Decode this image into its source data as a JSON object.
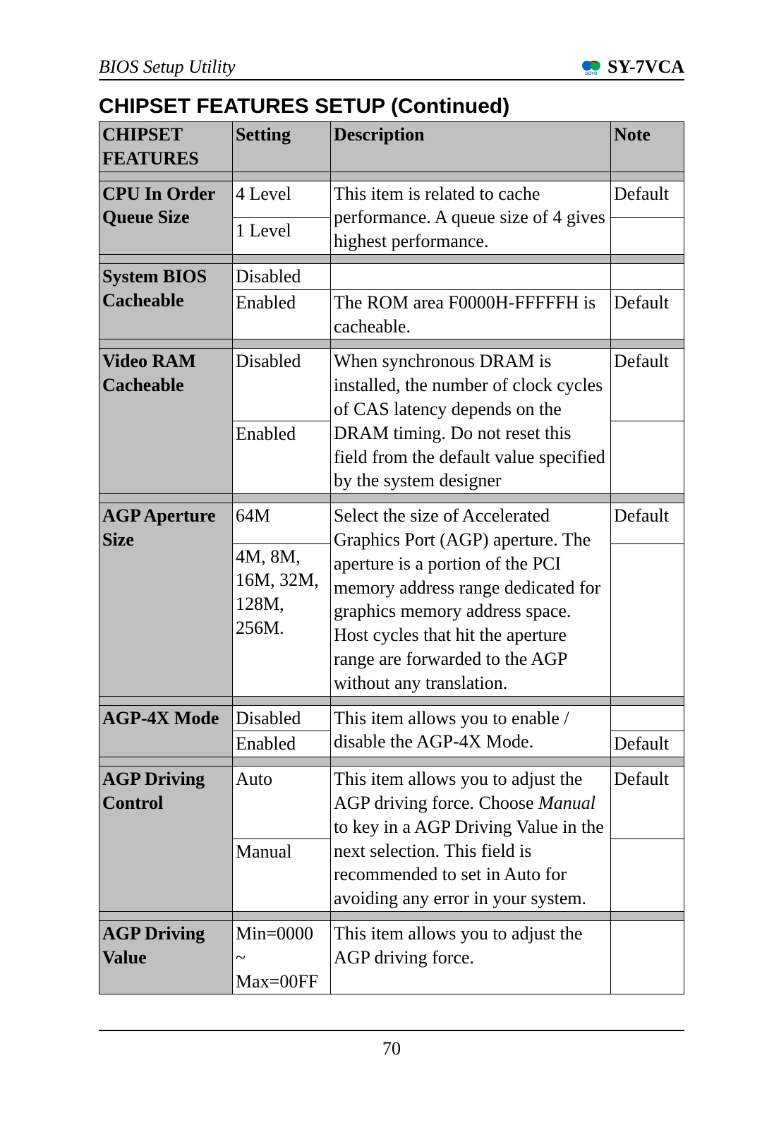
{
  "header": {
    "left": "BIOS Setup Utility",
    "right": "SY-7VCA",
    "logo_main_color": "#0066cc",
    "logo_text": "SOYO"
  },
  "section_title": "CHIPSET FEATURES SETUP (Continued)",
  "columns": {
    "feature": "CHIPSET FEATURES",
    "setting": "Setting",
    "description": "Description",
    "note": "Note"
  },
  "rows": [
    {
      "feature": "CPU In Order Queue Size",
      "settings": [
        "4 Level",
        "1 Level"
      ],
      "descriptions": [
        "This item is related to cache performance. A queue size of 4 gives highest performance."
      ],
      "desc_rowspan": 2,
      "notes": [
        "Default",
        ""
      ]
    },
    {
      "feature": "System BIOS Cacheable",
      "settings": [
        "Disabled",
        "Enabled"
      ],
      "descriptions": [
        "",
        "The ROM area F0000H-FFFFFH is cacheable."
      ],
      "notes": [
        "",
        "Default"
      ]
    },
    {
      "feature": "Video RAM Cacheable",
      "settings": [
        "Disabled",
        "Enabled"
      ],
      "descriptions": [
        "When synchronous DRAM is installed, the number of clock cycles of CAS latency depends on the DRAM timing. Do not reset this field from the default value specified by the system designer"
      ],
      "desc_rowspan": 2,
      "notes": [
        "Default",
        ""
      ]
    },
    {
      "feature": "AGP Aperture Size",
      "settings": [
        "64M",
        "4M, 8M, 16M, 32M, 128M, 256M."
      ],
      "descriptions": [
        "Select the size of Accelerated Graphics Port (AGP) aperture. The aperture is a portion of the PCI memory address range dedicated for graphics memory address space. Host cycles that hit the aperture range are forwarded to the AGP without any translation."
      ],
      "desc_rowspan": 2,
      "notes": [
        "Default",
        ""
      ]
    },
    {
      "feature": "AGP-4X Mode",
      "settings": [
        "Disabled",
        "Enabled"
      ],
      "descriptions": [
        "This item allows you to enable / disable the AGP-4X Mode."
      ],
      "desc_rowspan": 2,
      "notes": [
        "",
        "Default"
      ]
    },
    {
      "feature": "AGP Driving Control",
      "settings": [
        "Auto",
        "Manual"
      ],
      "descriptions_html": "This item allows you to adjust the AGP driving force. Choose <span class=\"italic\">Manual</span> to key in a AGP Driving Value in the next selection. This field is recommended to set in Auto for avoiding any error in your system.",
      "desc_rowspan": 2,
      "notes": [
        "Default",
        ""
      ]
    },
    {
      "feature": "AGP Driving Value",
      "settings": [
        "Min=0000 ~ Max=00FF"
      ],
      "descriptions": [
        "This item allows you to adjust the AGP driving force."
      ],
      "notes": [
        ""
      ]
    }
  ],
  "page_number": "70",
  "styling": {
    "body_font": "Times New Roman",
    "title_font": "Arial",
    "font_size_body": 26,
    "font_size_title": 30,
    "header_bg": "#c0c0c0",
    "border_color": "#000000",
    "page_bg": "#ffffff"
  }
}
